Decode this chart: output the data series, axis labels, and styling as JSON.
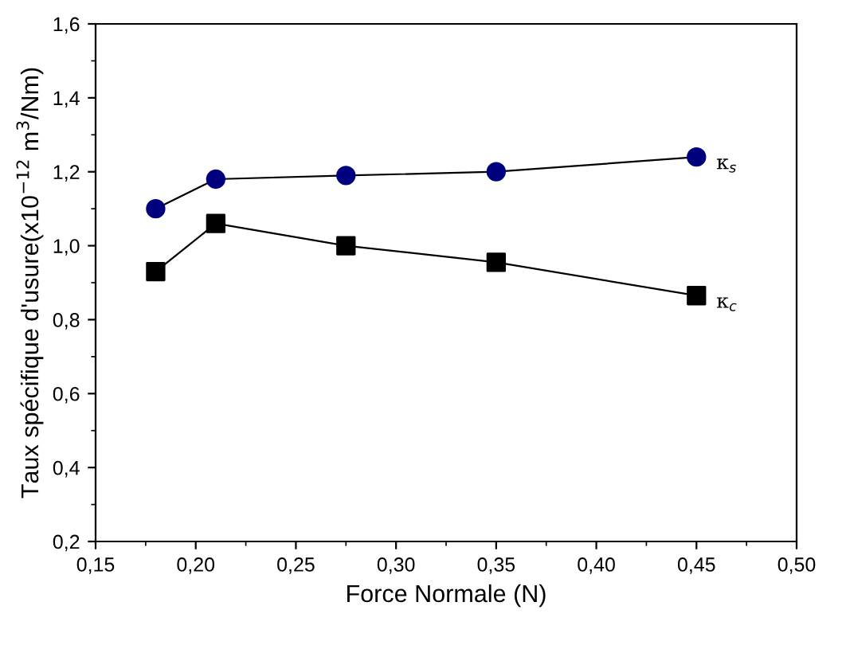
{
  "chart_data": {
    "type": "line",
    "xlabel": "Force Normale (N)",
    "ylabel": "Taux spécifique d'usure(x10$^{−12}$ m$^{3}$/Nm)",
    "x": [
      0.18,
      0.21,
      0.275,
      0.35,
      0.45
    ],
    "series": [
      {
        "name": "κ$_{s}$",
        "color": "#00007f",
        "marker": "circle",
        "values": [
          1.1,
          1.18,
          1.19,
          1.2,
          1.24
        ]
      },
      {
        "name": "κ$_{c}$",
        "color": "#000000",
        "marker": "square",
        "values": [
          0.93,
          1.06,
          1.0,
          0.955,
          0.865
        ]
      }
    ],
    "xlim": [
      0.15,
      0.5
    ],
    "xticks": [
      {
        "value": 0.15,
        "label": "0,15"
      },
      {
        "value": 0.2,
        "label": "0,20"
      },
      {
        "value": 0.25,
        "label": "0,25"
      },
      {
        "value": 0.3,
        "label": "0,30"
      },
      {
        "value": 0.35,
        "label": "0,35"
      },
      {
        "value": 0.4,
        "label": "0,40"
      },
      {
        "value": 0.45,
        "label": "0,45"
      },
      {
        "value": 0.5,
        "label": "0,50"
      }
    ],
    "ylim": [
      0.2,
      1.6
    ],
    "yticks": [
      {
        "value": 0.2,
        "label": "0,2"
      },
      {
        "value": 0.4,
        "label": "0,4"
      },
      {
        "value": 0.6,
        "label": "0,6"
      },
      {
        "value": 0.8,
        "label": "0,8"
      },
      {
        "value": 1.0,
        "label": "1,0"
      },
      {
        "value": 1.2,
        "label": "1,2"
      },
      {
        "value": 1.4,
        "label": "1,4"
      },
      {
        "value": 1.6,
        "label": "1,6"
      }
    ],
    "grid": false,
    "legend": false,
    "line_style": "solid"
  }
}
